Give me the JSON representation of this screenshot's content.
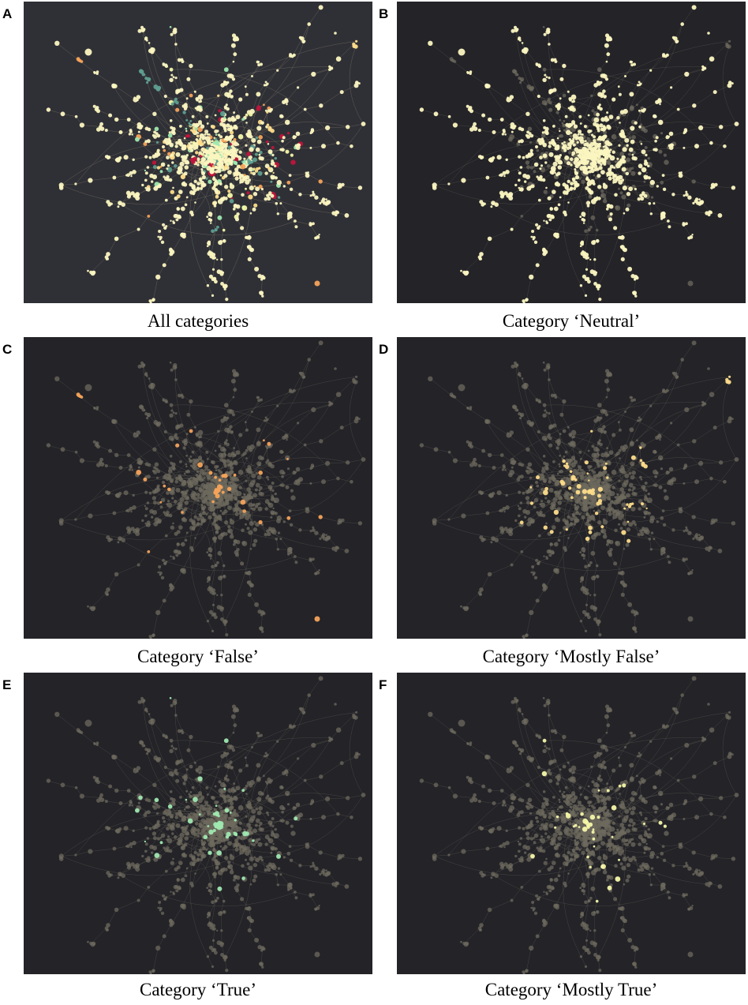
{
  "figure": {
    "panels": [
      {
        "letter": "A",
        "caption": "All categories",
        "highlight": "all",
        "background": "#2f3036"
      },
      {
        "letter": "B",
        "caption": "Category ‘Neutral’",
        "highlight": "neutral",
        "background": "#232328"
      },
      {
        "letter": "C",
        "caption": "Category ‘False’",
        "highlight": "false",
        "background": "#232328"
      },
      {
        "letter": "D",
        "caption": "Category ‘Mostly False’",
        "highlight": "mostly_false",
        "background": "#232328"
      },
      {
        "letter": "E",
        "caption": "Category ‘True’",
        "highlight": "true",
        "background": "#232328"
      },
      {
        "letter": "F",
        "caption": "Category ‘Mostly True’",
        "highlight": "mostly_true",
        "background": "#232328"
      }
    ],
    "category_colors": {
      "neutral": "#fbf6c0",
      "false": "#f6a35a",
      "mostly_false": "#fddc8a",
      "true": "#9fe8b0",
      "mostly_true": "#f4f7a8",
      "pants_on_fire": "#c0143c",
      "half_true": "#5e9e90",
      "dimmed": "#6e6a5e",
      "edge": "#8a8370"
    }
  }
}
